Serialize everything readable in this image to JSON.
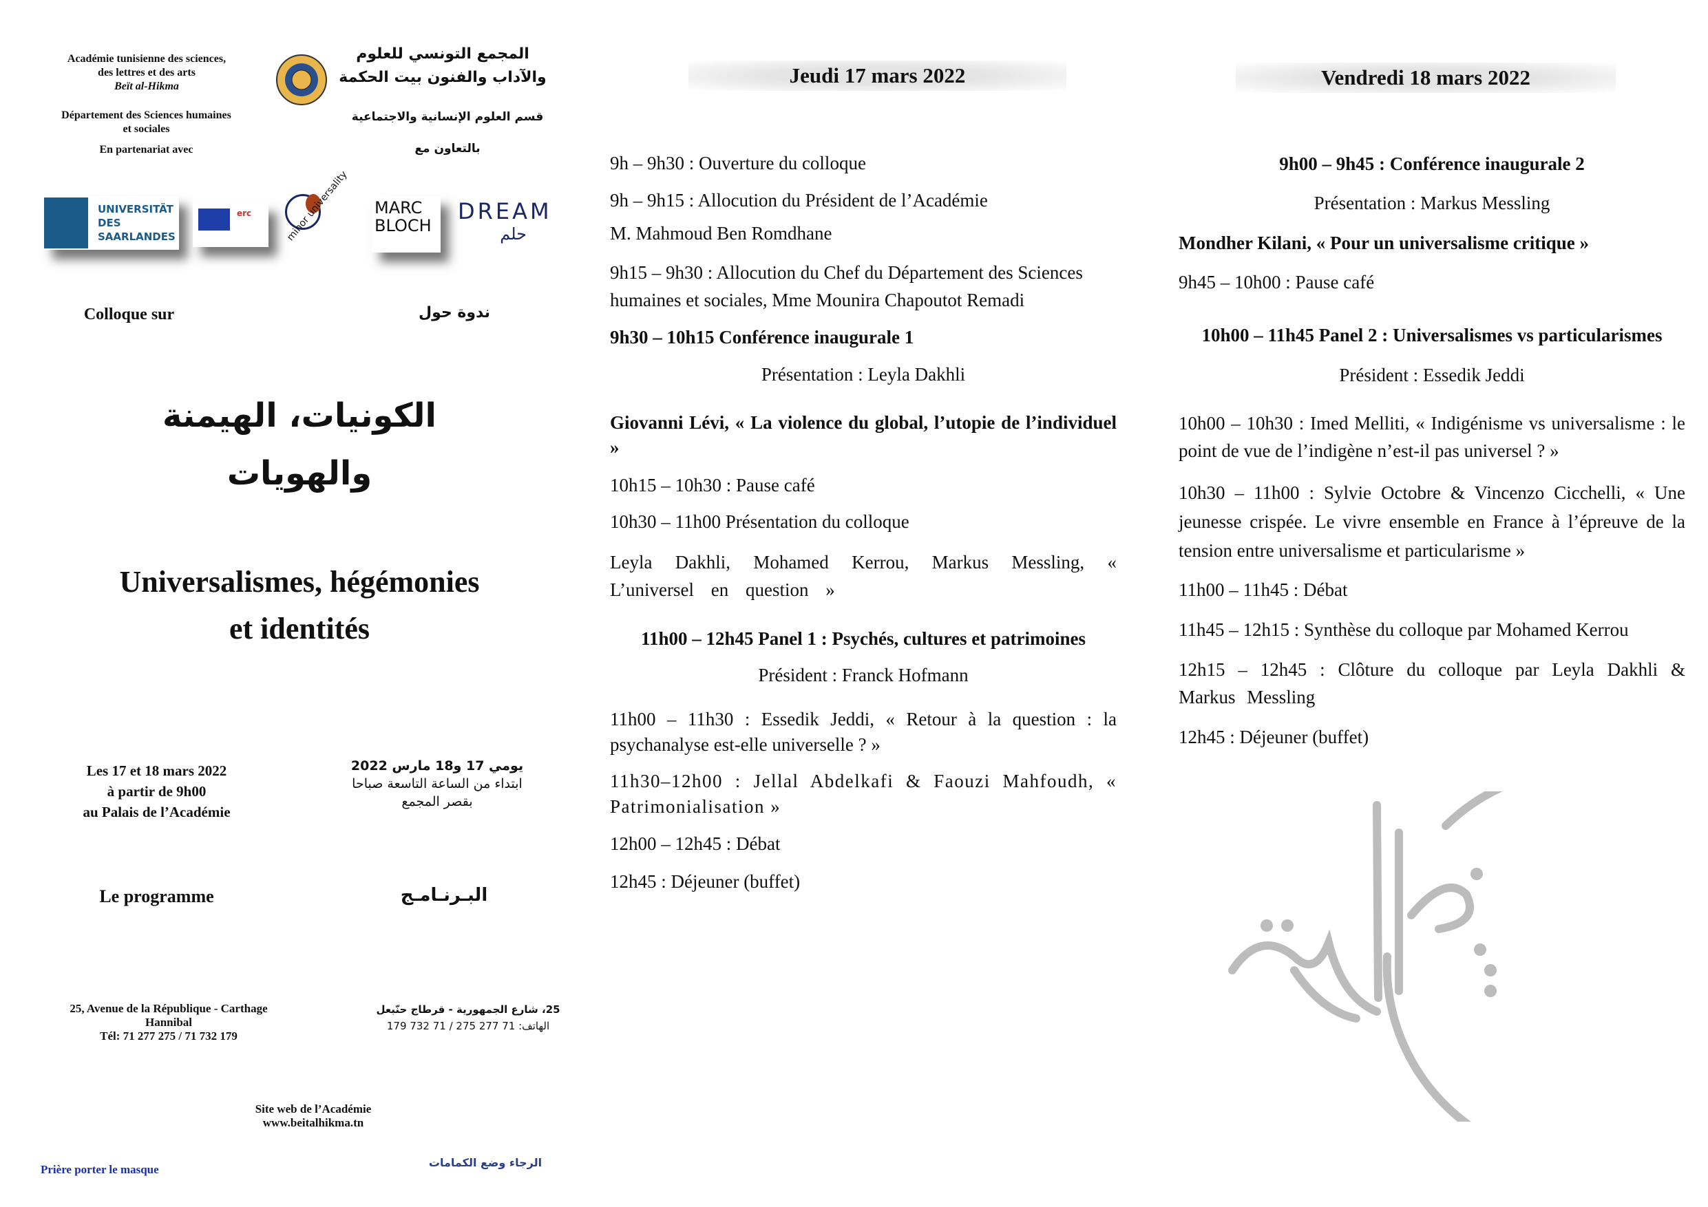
{
  "left": {
    "academy_fr": [
      "Académie tunisienne des sciences,",
      "des lettres et des arts",
      "Beït al-Hikma"
    ],
    "academy_ar": "المجمع التونسي للعلوم والآداب والفنون بيت الحكمة",
    "dept_fr": [
      "Département des Sciences humaines",
      "et sociales"
    ],
    "dept_ar": "قسم العلوم الإنسانية والاجتماعية",
    "partner_fr": "En partenariat avec",
    "partner_ar": "بالتعاون مع",
    "logos": {
      "saar": [
        "UNIVERSITÄT",
        "DES",
        "SAARLANDES"
      ],
      "erc": "erc",
      "minor": "minor universality",
      "marc": [
        "MARC",
        "BLOCH"
      ],
      "dream": "DREAM",
      "dream_ar": "حلم"
    },
    "colloque_fr": "Colloque sur",
    "colloque_ar": "ندوة حول",
    "title_ar": [
      "الكونيات، الهيمنة",
      "والهويات"
    ],
    "title_fr": [
      "Universalismes, hégémonies",
      "et identités"
    ],
    "dates_fr": [
      "Les 17 et 18 mars 2022",
      "à partir de 9h00",
      "au Palais de l’Académie"
    ],
    "dates_ar": [
      "يومي 17 و18 مارس 2022",
      "ابتداء من الساعة التاسعة صباحا",
      "بقصر المجمع"
    ],
    "programme_fr": "Le programme",
    "programme_ar": "البـرنـامـج",
    "address_fr": [
      "25, Avenue de la République - Carthage",
      "Hannibal",
      "Tél: 71 277 275 / 71 732 179"
    ],
    "address_ar": [
      "25، شارع الجمهورية - قرطاج حنّبعل",
      "الهاتف: 71 277 275 / 71 732 179"
    ],
    "site": [
      "Site web de l’Académie",
      "www.beitalhikma.tn"
    ],
    "mask_fr": "Prière porter le masque",
    "mask_ar": "الرجاء وضع الكمامات",
    "mask_color": "#1a2fa8"
  },
  "day1": {
    "title": "Jeudi 17 mars 2022",
    "items": [
      "9h – 9h30 : Ouverture du colloque",
      "9h – 9h15 : Allocution du Président de l’Académie",
      "M. Mahmoud Ben Romdhane",
      "9h15 – 9h30 : Allocution du Chef du Département des Sciences humaines et sociales, Mme Mounira Chapoutot Remadi",
      "9h30 – 10h15 Conférence inaugurale 1",
      "Présentation : Leyla Dakhli",
      "Giovanni Lévi, « La violence du global, l’utopie de l’individuel »",
      "10h15 – 10h30 : Pause café",
      "10h30 – 11h00 Présentation du colloque",
      "Leyla Dakhli, Mohamed Kerrou, Markus Messling, « L’universel en question »",
      "11h00 – 12h45 Panel 1 : Psychés, cultures et patrimoines",
      "Président : Franck Hofmann",
      "11h00 – 11h30 : Essedik Jeddi, « Retour à la question : la psychanalyse est-elle universelle ? »",
      "11h30–12h00 : Jellal Abdelkafi & Faouzi Mahfoudh, « Patrimonialisation »",
      "12h00 – 12h45 : Débat",
      "12h45 : Déjeuner (buffet)"
    ]
  },
  "day2": {
    "title": "Vendredi 18 mars 2022",
    "items": [
      "9h00 – 9h45 : Conférence inaugurale 2",
      "Présentation : Markus Messling",
      "Mondher Kilani, « Pour un universalisme critique »",
      "9h45 – 10h00 : Pause café",
      "10h00 – 11h45 Panel 2 : Universalismes vs particularismes",
      "Président : Essedik Jeddi",
      "10h00 – 10h30 : Imed Melliti, « Indigénisme vs universalisme : le point de vue de l’indigène n’est-il pas universel ? »",
      "10h30 – 11h00 : Sylvie Octobre & Vincenzo Cicchelli, « Une jeunesse crispée. Le vivre ensemble en France à l’épreuve de la tension entre universalisme et particularisme »",
      "11h00 – 11h45 : Débat",
      "11h45 – 12h15 : Synthèse du colloque par Mohamed Kerrou",
      "12h15 – 12h45 : Clôture du colloque par Leyla Dakhli & Markus Messling",
      "12h45 : Déjeuner (buffet)"
    ]
  }
}
